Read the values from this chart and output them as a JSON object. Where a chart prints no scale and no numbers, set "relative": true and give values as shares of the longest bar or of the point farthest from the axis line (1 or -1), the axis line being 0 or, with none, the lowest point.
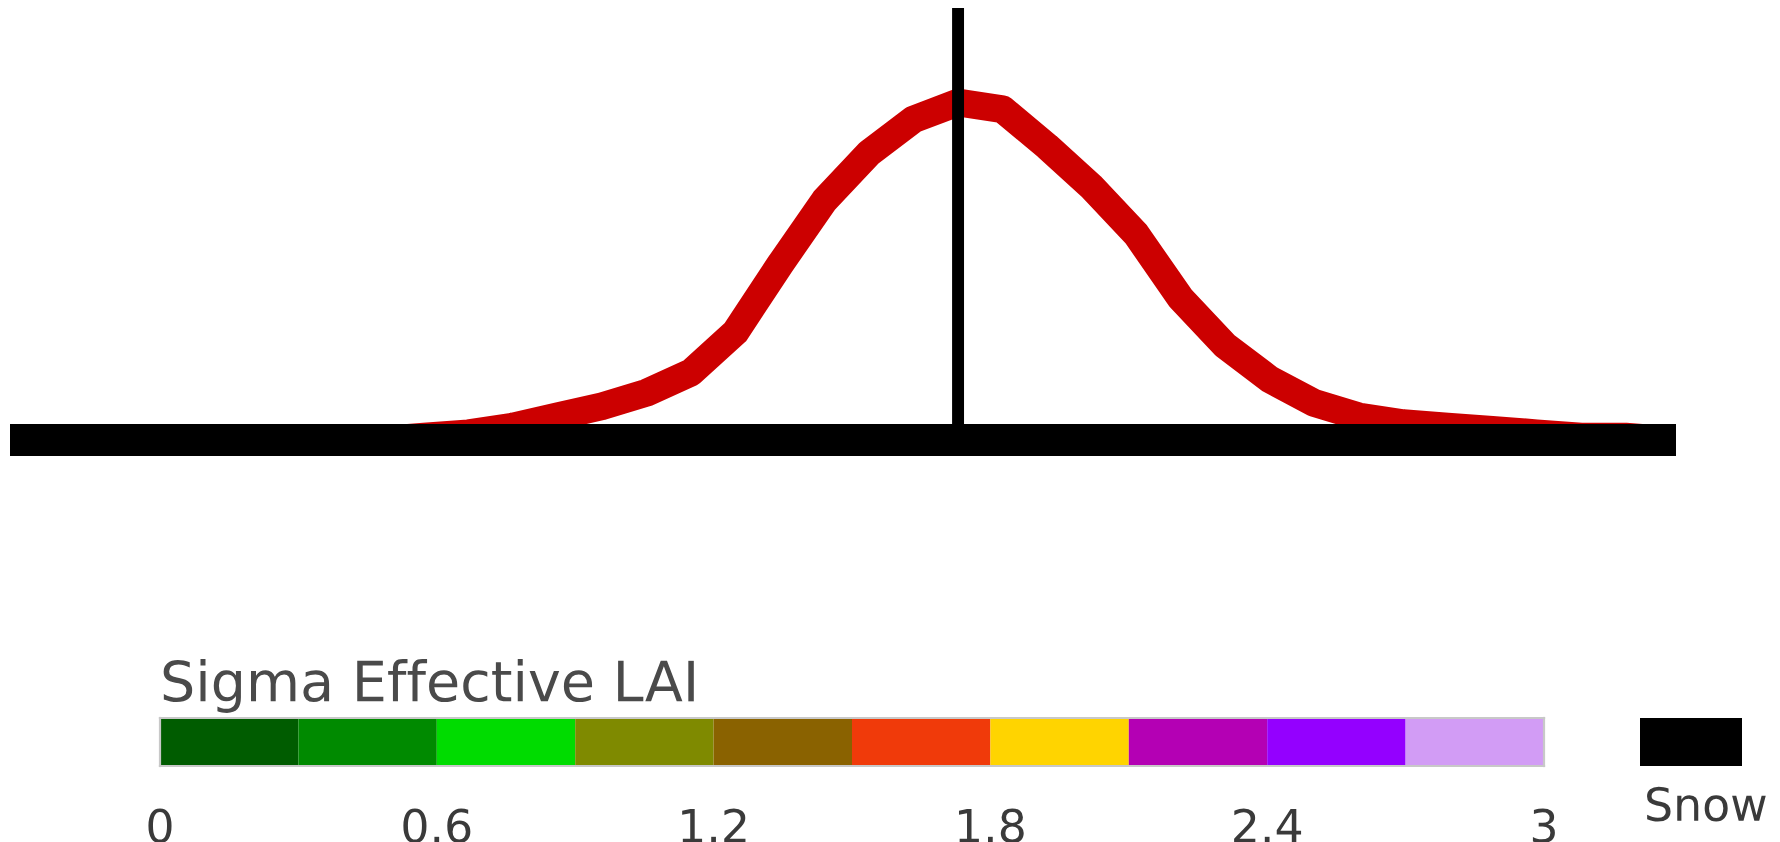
{
  "chart_data": [
    {
      "type": "line",
      "relative": true,
      "categories": [
        null,
        null,
        null,
        null,
        null,
        null,
        null,
        null,
        null,
        null,
        null,
        null,
        null,
        null,
        null,
        null,
        null,
        null,
        null,
        null,
        null,
        null,
        null,
        null,
        null,
        null,
        null,
        null,
        null,
        null,
        null,
        null,
        null
      ],
      "series": [
        {
          "color": "#cc0000",
          "values": [
            null,
            null,
            0,
            0,
            0.01,
            0.02,
            0.04,
            0.07,
            0.1,
            0.14,
            0.2,
            0.32,
            0.52,
            0.71,
            0.85,
            0.95,
            1,
            0.98,
            0.87,
            0.75,
            0.61,
            0.42,
            0.28,
            0.18,
            0.11,
            0.07,
            0.05,
            0.04,
            0.03,
            0.02,
            0.01,
            0.01,
            0
          ]
        }
      ]
    },
    {
      "type": "bar",
      "relative": true,
      "title": "Sigma Effective LAI",
      "x": [
        0.15,
        0.45,
        0.75,
        1.05,
        1.35,
        1.65,
        1.95,
        2.25,
        2.55,
        2.85
      ],
      "xlim": [
        0,
        3
      ],
      "xticks": [
        0,
        0.6,
        1.2,
        1.8,
        2.4,
        3
      ],
      "legend": "right",
      "series": [
        {
          "colors": [
            "#005c00",
            "#008a00",
            "#00dc00",
            "#7f8a00",
            "#8a6200",
            "#f03a0a",
            "#ffd400",
            "#b400b4",
            "#9400ff",
            "#d29cf5"
          ],
          "values": [
            1,
            1,
            1,
            1,
            1,
            1,
            1,
            1,
            1,
            1
          ]
        },
        {
          "name": "Snow",
          "color": "#000000",
          "values": [
            null,
            null,
            null,
            null,
            null,
            null,
            null,
            null,
            null,
            null
          ]
        }
      ]
    }
  ]
}
